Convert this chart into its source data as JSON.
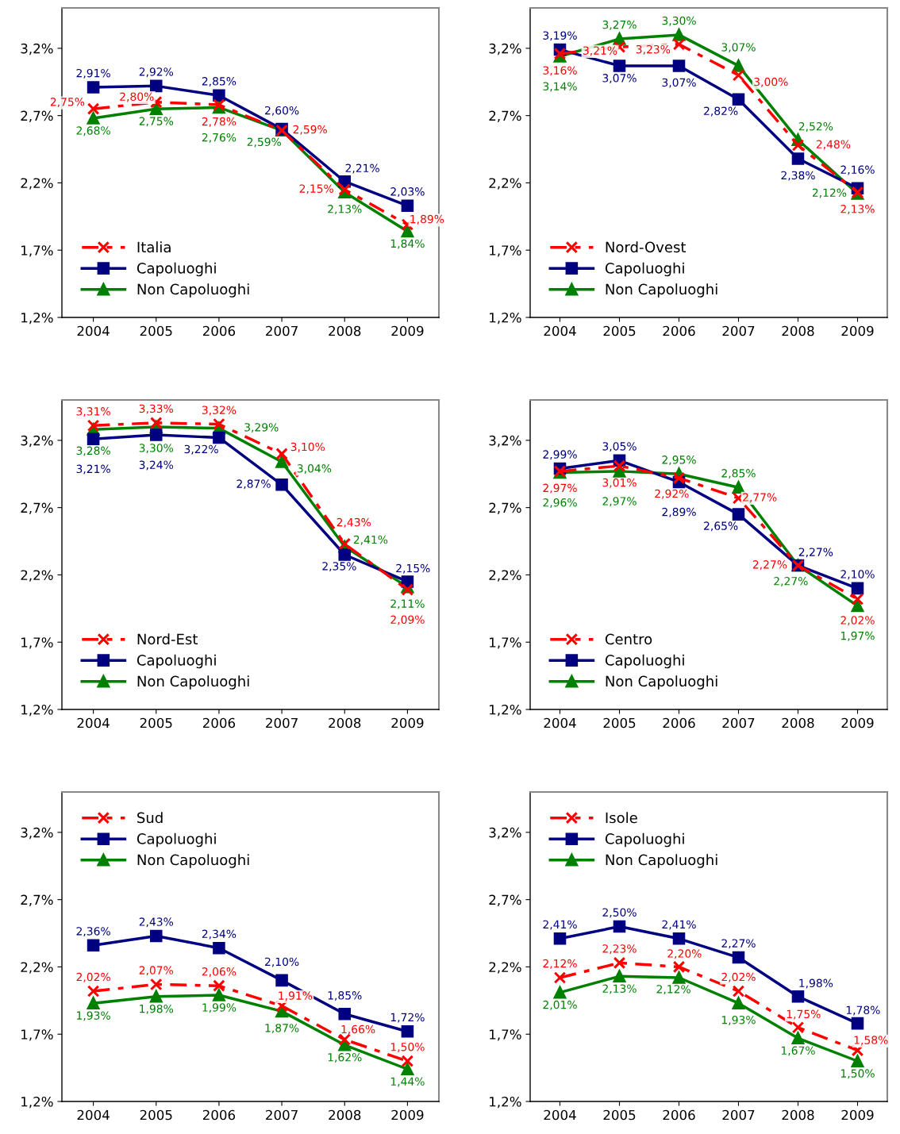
{
  "chart_data": [
    {
      "type": "line",
      "categories": [
        "2004",
        "2005",
        "2006",
        "2007",
        "2008",
        "2009"
      ],
      "ylim": [
        1.2,
        3.5
      ],
      "yticks": [
        {
          "value": 1.2,
          "label": "1,2%"
        },
        {
          "value": 1.7,
          "label": "1,7%"
        },
        {
          "value": 2.2,
          "label": "2,2%"
        },
        {
          "value": 2.7,
          "label": "2,7%"
        },
        {
          "value": 3.2,
          "label": "3,2%"
        }
      ],
      "legend": "bottom left",
      "grid": false,
      "series": [
        {
          "name": "Italia",
          "color": "#ff0000",
          "marker": "cross",
          "line_style": "dashed",
          "values": [
            2.75,
            2.8,
            2.78,
            2.59,
            2.15,
            1.89
          ],
          "value_labels": [
            "2,75%",
            "2,80%",
            "2,78%",
            "2,59%",
            "2,15%",
            "1,89%"
          ]
        },
        {
          "name": "Capoluoghi",
          "color": "#000080",
          "marker": "square",
          "line_style": "solid",
          "values": [
            2.91,
            2.92,
            2.85,
            2.6,
            2.21,
            2.03
          ],
          "value_labels": [
            "2,91%",
            "2,92%",
            "2,85%",
            "2,60%",
            "2,21%",
            "2,03%"
          ]
        },
        {
          "name": "Non Capoluoghi",
          "color": "#008000",
          "marker": "triangle",
          "line_style": "solid",
          "values": [
            2.68,
            2.75,
            2.76,
            2.59,
            2.13,
            1.84
          ],
          "value_labels": [
            "2,68%",
            "2,75%",
            "2,76%",
            "2,59%",
            "2,13%",
            "1,84%"
          ]
        }
      ]
    },
    {
      "type": "line",
      "categories": [
        "2004",
        "2005",
        "2006",
        "2007",
        "2008",
        "2009"
      ],
      "ylim": [
        1.2,
        3.5
      ],
      "yticks": [
        {
          "value": 1.2,
          "label": "1,2%"
        },
        {
          "value": 1.7,
          "label": "1,7%"
        },
        {
          "value": 2.2,
          "label": "2,2%"
        },
        {
          "value": 2.7,
          "label": "2,7%"
        },
        {
          "value": 3.2,
          "label": "3,2%"
        }
      ],
      "legend": "bottom left",
      "grid": false,
      "series": [
        {
          "name": "Nord-Ovest",
          "color": "#ff0000",
          "marker": "cross",
          "line_style": "dashed",
          "values": [
            3.16,
            3.21,
            3.23,
            3.0,
            2.48,
            2.13
          ],
          "value_labels": [
            "3,16%",
            "3,21%",
            "3,23%",
            "3,00%",
            "2,48%",
            "2,13%"
          ]
        },
        {
          "name": "Capoluoghi",
          "color": "#000080",
          "marker": "square",
          "line_style": "solid",
          "values": [
            3.19,
            3.07,
            3.07,
            2.82,
            2.38,
            2.16
          ],
          "value_labels": [
            "3,19%",
            "3,07%",
            "3,07%",
            "2,82%",
            "2,38%",
            "2,16%"
          ]
        },
        {
          "name": "Non Capoluoghi",
          "color": "#008000",
          "marker": "triangle",
          "line_style": "solid",
          "values": [
            3.14,
            3.27,
            3.3,
            3.07,
            2.52,
            2.12
          ],
          "value_labels": [
            "3,14%",
            "3,27%",
            "3,30%",
            "3,07%",
            "2,52%",
            "2,12%"
          ]
        }
      ]
    },
    {
      "type": "line",
      "categories": [
        "2004",
        "2005",
        "2006",
        "2007",
        "2008",
        "2009"
      ],
      "ylim": [
        1.2,
        3.5
      ],
      "yticks": [
        {
          "value": 1.2,
          "label": "1,2%"
        },
        {
          "value": 1.7,
          "label": "1,7%"
        },
        {
          "value": 2.2,
          "label": "2,2%"
        },
        {
          "value": 2.7,
          "label": "2,7%"
        },
        {
          "value": 3.2,
          "label": "3,2%"
        }
      ],
      "legend": "bottom left",
      "grid": false,
      "series": [
        {
          "name": "Nord-Est",
          "color": "#ff0000",
          "marker": "cross",
          "line_style": "dashed",
          "values": [
            3.31,
            3.33,
            3.32,
            3.1,
            2.43,
            2.09
          ],
          "value_labels": [
            "3,31%",
            "3,33%",
            "3,32%",
            "3,10%",
            "2,43%",
            "2,09%"
          ]
        },
        {
          "name": "Capoluoghi",
          "color": "#000080",
          "marker": "square",
          "line_style": "solid",
          "values": [
            3.21,
            3.24,
            3.22,
            2.87,
            2.35,
            2.15
          ],
          "value_labels": [
            "3,21%",
            "3,24%",
            "3,22%",
            "2,87%",
            "2,35%",
            "2,15%"
          ]
        },
        {
          "name": "Non Capoluoghi",
          "color": "#008000",
          "marker": "triangle",
          "line_style": "solid",
          "values": [
            3.28,
            3.3,
            3.29,
            3.04,
            2.41,
            2.11
          ],
          "value_labels": [
            "3,28%",
            "3,30%",
            "3,29%",
            "3,04%",
            "2,41%",
            "2,11%"
          ]
        }
      ]
    },
    {
      "type": "line",
      "categories": [
        "2004",
        "2005",
        "2006",
        "2007",
        "2008",
        "2009"
      ],
      "ylim": [
        1.2,
        3.5
      ],
      "yticks": [
        {
          "value": 1.2,
          "label": "1,2%"
        },
        {
          "value": 1.7,
          "label": "1,7%"
        },
        {
          "value": 2.2,
          "label": "2,2%"
        },
        {
          "value": 2.7,
          "label": "2,7%"
        },
        {
          "value": 3.2,
          "label": "3,2%"
        }
      ],
      "legend": "bottom left",
      "grid": false,
      "series": [
        {
          "name": "Centro",
          "color": "#ff0000",
          "marker": "cross",
          "line_style": "dashed",
          "values": [
            2.97,
            3.01,
            2.92,
            2.77,
            2.27,
            2.02
          ],
          "value_labels": [
            "2,97%",
            "3,01%",
            "2,92%",
            "2,77%",
            "2,27%",
            "2,02%"
          ]
        },
        {
          "name": "Capoluoghi",
          "color": "#000080",
          "marker": "square",
          "line_style": "solid",
          "values": [
            2.99,
            3.05,
            2.89,
            2.65,
            2.27,
            2.1
          ],
          "value_labels": [
            "2,99%",
            "3,05%",
            "2,89%",
            "2,65%",
            "2,27%",
            "2,10%"
          ]
        },
        {
          "name": "Non Capoluoghi",
          "color": "#008000",
          "marker": "triangle",
          "line_style": "solid",
          "values": [
            2.96,
            2.97,
            2.95,
            2.85,
            2.27,
            1.97
          ],
          "value_labels": [
            "2,96%",
            "2,97%",
            "2,95%",
            "2,85%",
            "2,27%",
            "1,97%"
          ]
        }
      ]
    },
    {
      "type": "line",
      "categories": [
        "2004",
        "2005",
        "2006",
        "2007",
        "2008",
        "2009"
      ],
      "ylim": [
        1.2,
        3.5
      ],
      "yticks": [
        {
          "value": 1.2,
          "label": "1,2%"
        },
        {
          "value": 1.7,
          "label": "1,7%"
        },
        {
          "value": 2.2,
          "label": "2,2%"
        },
        {
          "value": 2.7,
          "label": "2,7%"
        },
        {
          "value": 3.2,
          "label": "3,2%"
        }
      ],
      "legend": "top left",
      "grid": false,
      "series": [
        {
          "name": "Sud",
          "color": "#ff0000",
          "marker": "cross",
          "line_style": "dashed",
          "values": [
            2.02,
            2.07,
            2.06,
            1.91,
            1.66,
            1.5
          ],
          "value_labels": [
            "2,02%",
            "2,07%",
            "2,06%",
            "1,91%",
            "1,66%",
            "1,50%"
          ]
        },
        {
          "name": "Capoluoghi",
          "color": "#000080",
          "marker": "square",
          "line_style": "solid",
          "values": [
            2.36,
            2.43,
            2.34,
            2.1,
            1.85,
            1.72
          ],
          "value_labels": [
            "2,36%",
            "2,43%",
            "2,34%",
            "2,10%",
            "1,85%",
            "1,72%"
          ]
        },
        {
          "name": "Non Capoluoghi",
          "color": "#008000",
          "marker": "triangle",
          "line_style": "solid",
          "values": [
            1.93,
            1.98,
            1.99,
            1.87,
            1.62,
            1.44
          ],
          "value_labels": [
            "1,93%",
            "1,98%",
            "1,99%",
            "1,87%",
            "1,62%",
            "1,44%"
          ]
        }
      ]
    },
    {
      "type": "line",
      "categories": [
        "2004",
        "2005",
        "2006",
        "2007",
        "2008",
        "2009"
      ],
      "ylim": [
        1.2,
        3.5
      ],
      "yticks": [
        {
          "value": 1.2,
          "label": "1,2%"
        },
        {
          "value": 1.7,
          "label": "1,7%"
        },
        {
          "value": 2.2,
          "label": "2,2%"
        },
        {
          "value": 2.7,
          "label": "2,7%"
        },
        {
          "value": 3.2,
          "label": "3,2%"
        }
      ],
      "legend": "top left",
      "grid": false,
      "series": [
        {
          "name": "Isole",
          "color": "#ff0000",
          "marker": "cross",
          "line_style": "dashed",
          "values": [
            2.12,
            2.23,
            2.2,
            2.02,
            1.75,
            1.58
          ],
          "value_labels": [
            "2,12%",
            "2,23%",
            "2,20%",
            "2,02%",
            "1,75%",
            "1,58%"
          ]
        },
        {
          "name": "Capoluoghi",
          "color": "#000080",
          "marker": "square",
          "line_style": "solid",
          "values": [
            2.41,
            2.5,
            2.41,
            2.27,
            1.98,
            1.78
          ],
          "value_labels": [
            "2,41%",
            "2,50%",
            "2,41%",
            "2,27%",
            "1,98%",
            "1,78%"
          ]
        },
        {
          "name": "Non Capoluoghi",
          "color": "#008000",
          "marker": "triangle",
          "line_style": "solid",
          "values": [
            2.01,
            2.13,
            2.12,
            1.93,
            1.67,
            1.5
          ],
          "value_labels": [
            "2,01%",
            "2,13%",
            "2,12%",
            "1,93%",
            "1,67%",
            "1,50%"
          ]
        }
      ]
    }
  ]
}
